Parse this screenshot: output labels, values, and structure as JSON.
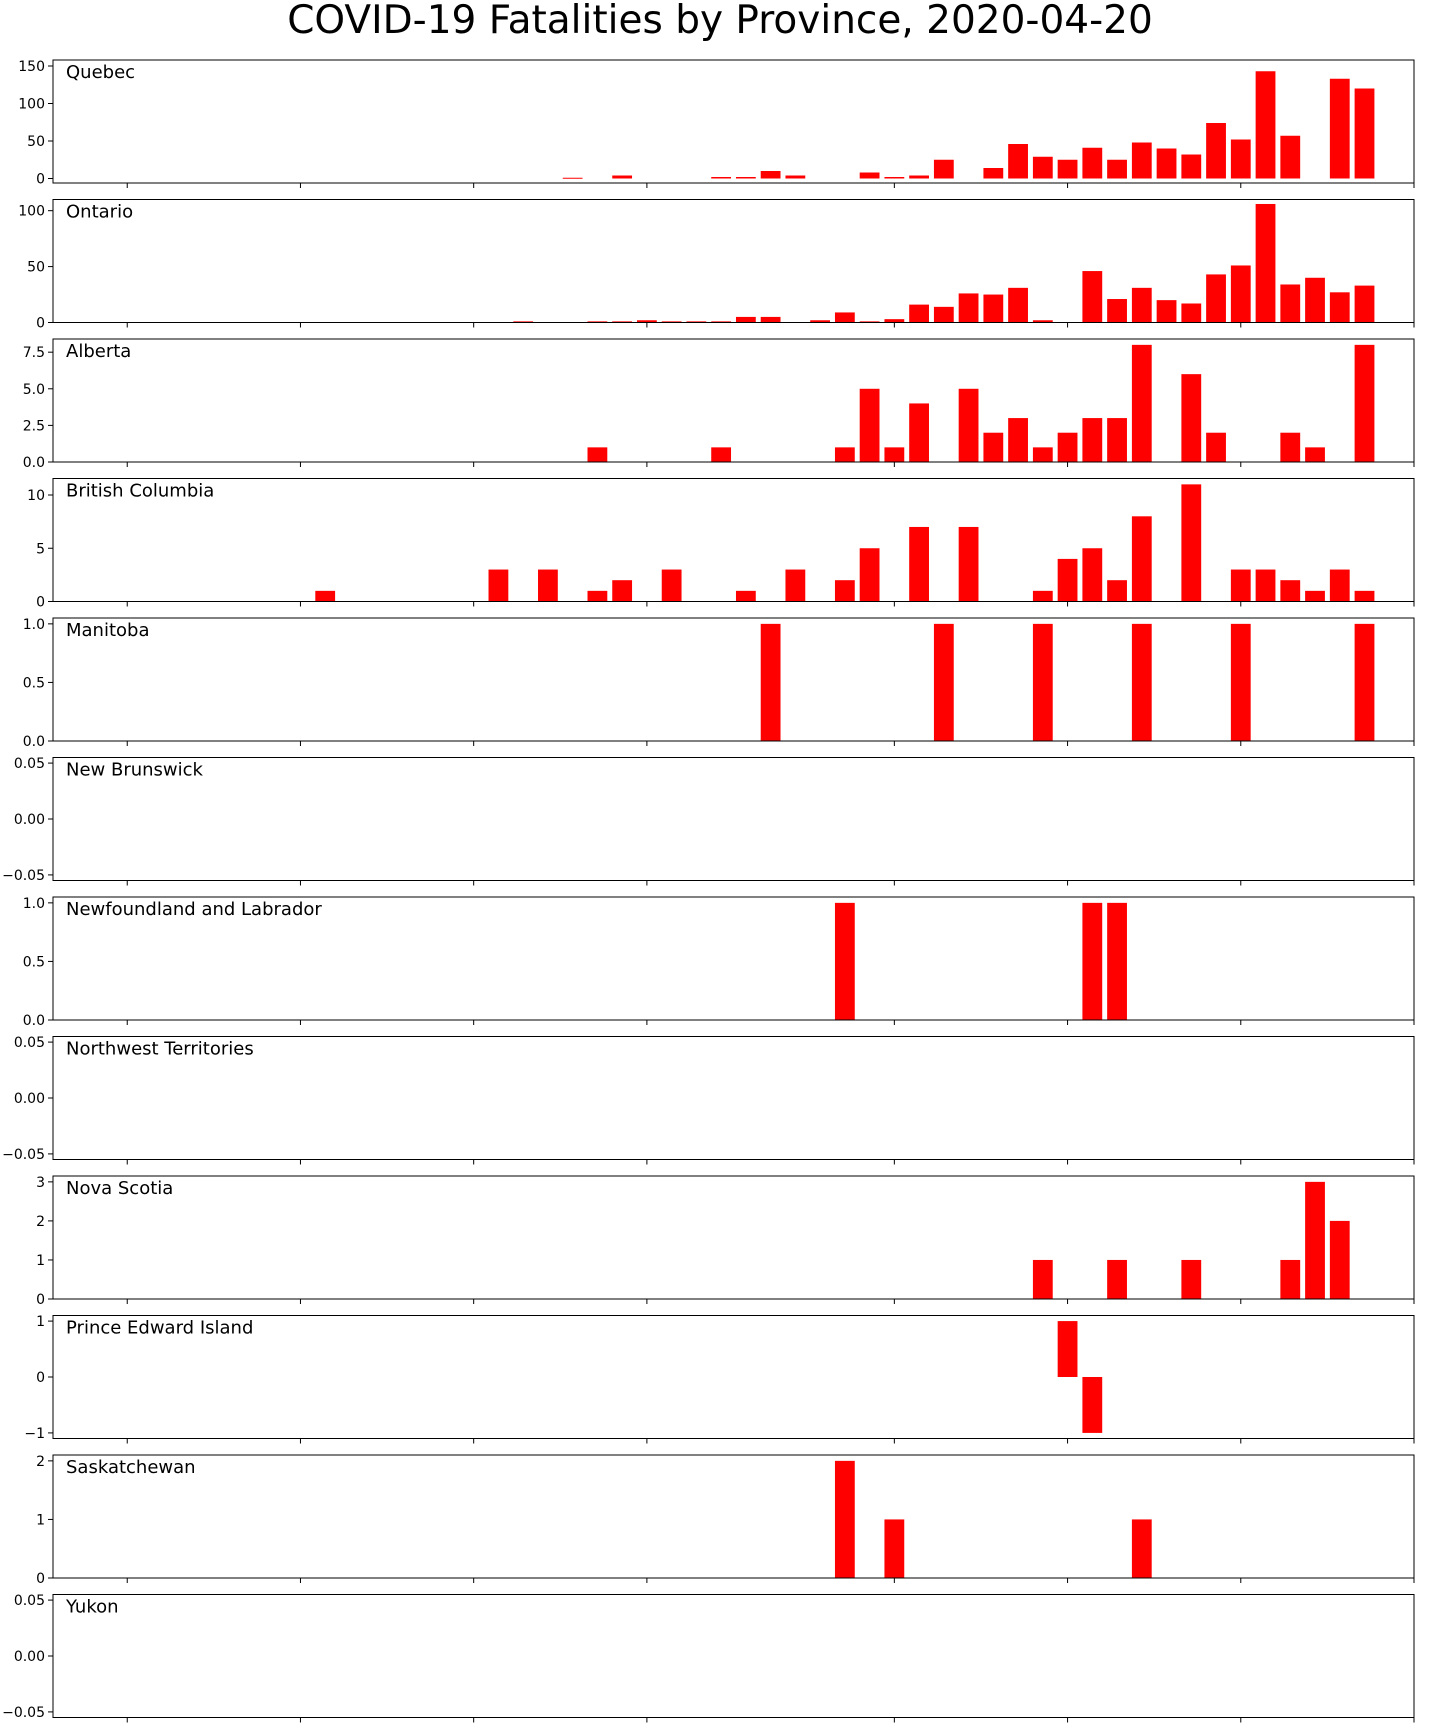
{
  "chart_data": {
    "type": "bar",
    "title": "COVID-19 Fatalities by Province, 2020-04-20",
    "bar_color": "#ff0000",
    "x_start": "2020-02-27",
    "x_end": "2020-04-22",
    "x_ticks": [
      "2020-03-01",
      "2020-03-08",
      "2020-03-15",
      "2020-03-22",
      "2020-04-01",
      "2020-04-08",
      "2020-04-15",
      "2020-04-22"
    ],
    "panels": [
      {
        "name": "Quebec",
        "ylim": [
          -6,
          158
        ],
        "yticks": [
          0,
          50,
          100,
          150
        ],
        "ytick_labels": [
          "0",
          "50",
          "100",
          "150"
        ],
        "points": [
          [
            "2020-03-19",
            1
          ],
          [
            "2020-03-21",
            4
          ],
          [
            "2020-03-25",
            2
          ],
          [
            "2020-03-26",
            2
          ],
          [
            "2020-03-27",
            10
          ],
          [
            "2020-03-28",
            4
          ],
          [
            "2020-03-31",
            8
          ],
          [
            "2020-04-01",
            2
          ],
          [
            "2020-04-02",
            4
          ],
          [
            "2020-04-03",
            25
          ],
          [
            "2020-04-05",
            14
          ],
          [
            "2020-04-06",
            46
          ],
          [
            "2020-04-07",
            29
          ],
          [
            "2020-04-08",
            25
          ],
          [
            "2020-04-09",
            41
          ],
          [
            "2020-04-10",
            25
          ],
          [
            "2020-04-11",
            48
          ],
          [
            "2020-04-12",
            40
          ],
          [
            "2020-04-13",
            32
          ],
          [
            "2020-04-14",
            74
          ],
          [
            "2020-04-15",
            52
          ],
          [
            "2020-04-16",
            143
          ],
          [
            "2020-04-17",
            57
          ],
          [
            "2020-04-19",
            133
          ],
          [
            "2020-04-20",
            120
          ]
        ]
      },
      {
        "name": "Ontario",
        "ylim": [
          0,
          110
        ],
        "yticks": [
          0,
          50,
          100
        ],
        "ytick_labels": [
          "0",
          "50",
          "100"
        ],
        "points": [
          [
            "2020-03-17",
            1
          ],
          [
            "2020-03-20",
            1
          ],
          [
            "2020-03-21",
            1
          ],
          [
            "2020-03-22",
            2
          ],
          [
            "2020-03-23",
            1
          ],
          [
            "2020-03-24",
            1
          ],
          [
            "2020-03-25",
            1
          ],
          [
            "2020-03-26",
            5
          ],
          [
            "2020-03-27",
            5
          ],
          [
            "2020-03-29",
            2
          ],
          [
            "2020-03-30",
            9
          ],
          [
            "2020-03-31",
            1
          ],
          [
            "2020-04-01",
            3
          ],
          [
            "2020-04-02",
            16
          ],
          [
            "2020-04-03",
            14
          ],
          [
            "2020-04-04",
            26
          ],
          [
            "2020-04-05",
            25
          ],
          [
            "2020-04-06",
            31
          ],
          [
            "2020-04-07",
            2
          ],
          [
            "2020-04-09",
            46
          ],
          [
            "2020-04-10",
            21
          ],
          [
            "2020-04-11",
            31
          ],
          [
            "2020-04-12",
            20
          ],
          [
            "2020-04-13",
            17
          ],
          [
            "2020-04-14",
            43
          ],
          [
            "2020-04-15",
            51
          ],
          [
            "2020-04-16",
            106
          ],
          [
            "2020-04-17",
            34
          ],
          [
            "2020-04-18",
            40
          ],
          [
            "2020-04-19",
            27
          ],
          [
            "2020-04-20",
            33
          ]
        ]
      },
      {
        "name": "Alberta",
        "ylim": [
          0,
          8.4
        ],
        "yticks": [
          0,
          2.5,
          5,
          7.5
        ],
        "ytick_labels": [
          "0.0",
          "2.5",
          "5.0",
          "7.5"
        ],
        "points": [
          [
            "2020-03-20",
            1
          ],
          [
            "2020-03-25",
            1
          ],
          [
            "2020-03-30",
            1
          ],
          [
            "2020-03-31",
            5
          ],
          [
            "2020-04-01",
            1
          ],
          [
            "2020-04-02",
            4
          ],
          [
            "2020-04-04",
            5
          ],
          [
            "2020-04-05",
            2
          ],
          [
            "2020-04-06",
            3
          ],
          [
            "2020-04-07",
            1
          ],
          [
            "2020-04-08",
            2
          ],
          [
            "2020-04-09",
            3
          ],
          [
            "2020-04-10",
            3
          ],
          [
            "2020-04-11",
            8
          ],
          [
            "2020-04-13",
            6
          ],
          [
            "2020-04-14",
            2
          ],
          [
            "2020-04-17",
            2
          ],
          [
            "2020-04-18",
            1
          ],
          [
            "2020-04-20",
            8
          ]
        ]
      },
      {
        "name": "British Columbia",
        "ylim": [
          0,
          11.55
        ],
        "yticks": [
          0,
          5,
          10
        ],
        "ytick_labels": [
          "0",
          "5",
          "10"
        ],
        "points": [
          [
            "2020-03-09",
            1
          ],
          [
            "2020-03-16",
            3
          ],
          [
            "2020-03-18",
            3
          ],
          [
            "2020-03-20",
            1
          ],
          [
            "2020-03-21",
            2
          ],
          [
            "2020-03-23",
            3
          ],
          [
            "2020-03-26",
            1
          ],
          [
            "2020-03-28",
            3
          ],
          [
            "2020-03-30",
            2
          ],
          [
            "2020-03-31",
            5
          ],
          [
            "2020-04-02",
            7
          ],
          [
            "2020-04-04",
            7
          ],
          [
            "2020-04-07",
            1
          ],
          [
            "2020-04-08",
            4
          ],
          [
            "2020-04-09",
            5
          ],
          [
            "2020-04-10",
            2
          ],
          [
            "2020-04-11",
            8
          ],
          [
            "2020-04-13",
            11
          ],
          [
            "2020-04-15",
            3
          ],
          [
            "2020-04-16",
            3
          ],
          [
            "2020-04-17",
            2
          ],
          [
            "2020-04-18",
            1
          ],
          [
            "2020-04-19",
            3
          ],
          [
            "2020-04-20",
            1
          ]
        ]
      },
      {
        "name": "Manitoba",
        "ylim": [
          0,
          1.05
        ],
        "yticks": [
          0,
          0.5,
          1
        ],
        "ytick_labels": [
          "0.0",
          "0.5",
          "1.0"
        ],
        "points": [
          [
            "2020-03-27",
            1
          ],
          [
            "2020-04-03",
            1
          ],
          [
            "2020-04-07",
            1
          ],
          [
            "2020-04-11",
            1
          ],
          [
            "2020-04-15",
            1
          ],
          [
            "2020-04-20",
            1
          ]
        ]
      },
      {
        "name": "New Brunswick",
        "ylim": [
          -0.055,
          0.055
        ],
        "yticks": [
          -0.05,
          0,
          0.05
        ],
        "ytick_labels": [
          "−0.05",
          "0.00",
          "0.05"
        ],
        "points": []
      },
      {
        "name": "Newfoundland and Labrador",
        "ylim": [
          0,
          1.05
        ],
        "yticks": [
          0,
          0.5,
          1
        ],
        "ytick_labels": [
          "0.0",
          "0.5",
          "1.0"
        ],
        "points": [
          [
            "2020-03-30",
            1
          ],
          [
            "2020-04-09",
            1
          ],
          [
            "2020-04-10",
            1
          ]
        ]
      },
      {
        "name": "Northwest Territories",
        "ylim": [
          -0.055,
          0.055
        ],
        "yticks": [
          -0.05,
          0,
          0.05
        ],
        "ytick_labels": [
          "−0.05",
          "0.00",
          "0.05"
        ],
        "points": []
      },
      {
        "name": "Nova Scotia",
        "ylim": [
          0,
          3.15
        ],
        "yticks": [
          0,
          1,
          2,
          3
        ],
        "ytick_labels": [
          "0",
          "1",
          "2",
          "3"
        ],
        "points": [
          [
            "2020-04-07",
            1
          ],
          [
            "2020-04-10",
            1
          ],
          [
            "2020-04-13",
            1
          ],
          [
            "2020-04-17",
            1
          ],
          [
            "2020-04-18",
            3
          ],
          [
            "2020-04-19",
            2
          ]
        ]
      },
      {
        "name": "Prince Edward Island",
        "ylim": [
          -1.1,
          1.1
        ],
        "yticks": [
          -1,
          0,
          1
        ],
        "ytick_labels": [
          "−1",
          "0",
          "1"
        ],
        "points": [
          [
            "2020-04-08",
            1
          ],
          [
            "2020-04-09",
            -1
          ]
        ]
      },
      {
        "name": "Saskatchewan",
        "ylim": [
          0,
          2.1
        ],
        "yticks": [
          0,
          1,
          2
        ],
        "ytick_labels": [
          "0",
          "1",
          "2"
        ],
        "points": [
          [
            "2020-03-30",
            2
          ],
          [
            "2020-04-01",
            1
          ],
          [
            "2020-04-11",
            1
          ]
        ]
      },
      {
        "name": "Yukon",
        "ylim": [
          -0.055,
          0.055
        ],
        "yticks": [
          -0.05,
          0,
          0.05
        ],
        "ytick_labels": [
          "−0.05",
          "0.00",
          "0.05"
        ],
        "points": []
      }
    ]
  }
}
